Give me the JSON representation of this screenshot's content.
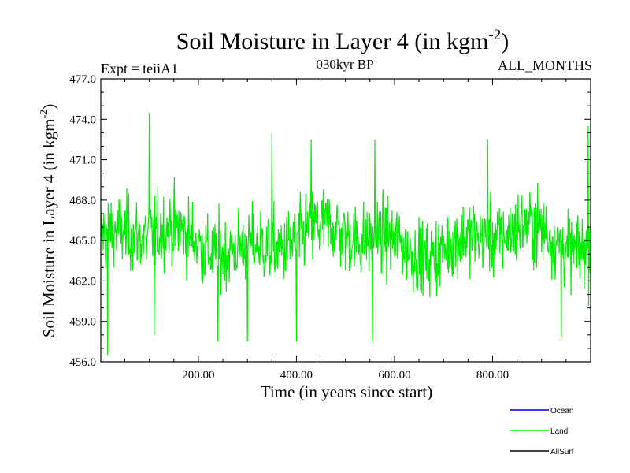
{
  "chart_data": {
    "type": "line",
    "title": "Soil Moisture in Layer 4 (in kgm",
    "title_sup": "-2",
    "title_close": ")",
    "subtitle_left": "Expt = teiiA1",
    "subtitle_center": "030kyr BP",
    "subtitle_right": "ALL_MONTHS",
    "xlabel": "Time (in years since start)",
    "ylabel": "Soil Moisture in Layer 4 (in kgm",
    "ylabel_sup": "-2",
    "ylabel_close": ")",
    "xlim": [
      1,
      1000
    ],
    "ylim": [
      456.0,
      477.0
    ],
    "x_ticks": [
      200,
      400,
      600,
      800
    ],
    "x_tick_labels": [
      "200.00",
      "400.00",
      "600.00",
      "800.00"
    ],
    "y_ticks": [
      456,
      459,
      462,
      465,
      468,
      471,
      474,
      477
    ],
    "y_tick_labels": [
      "456.0",
      "459.0",
      "462.0",
      "465.0",
      "468.0",
      "471.0",
      "474.0",
      "477.0"
    ],
    "legend_position": "bottom-right, outside plot",
    "legend": [
      {
        "name": "Ocean",
        "color": "#0000ff"
      },
      {
        "name": "Land",
        "color": "#00ee00"
      },
      {
        "name": "AllSurf",
        "color": "#000000"
      }
    ],
    "series": [
      {
        "name": "Land",
        "color": "#00ee00",
        "x_start": 1,
        "x_step": 1,
        "count": 1000,
        "mean": 465.0,
        "typical_min": 458.0,
        "typical_max": 471.0,
        "notable_points": [
          {
            "x": 15,
            "y": 456.5
          },
          {
            "x": 100,
            "y": 474.5
          },
          {
            "x": 110,
            "y": 458.0
          },
          {
            "x": 240,
            "y": 457.5
          },
          {
            "x": 300,
            "y": 457.5
          },
          {
            "x": 350,
            "y": 473.0
          },
          {
            "x": 400,
            "y": 457.5
          },
          {
            "x": 430,
            "y": 472.5
          },
          {
            "x": 555,
            "y": 457.5
          },
          {
            "x": 560,
            "y": 472.5
          },
          {
            "x": 790,
            "y": 472.5
          },
          {
            "x": 940,
            "y": 457.8
          },
          {
            "x": 995,
            "y": 473.5
          }
        ]
      }
    ]
  }
}
